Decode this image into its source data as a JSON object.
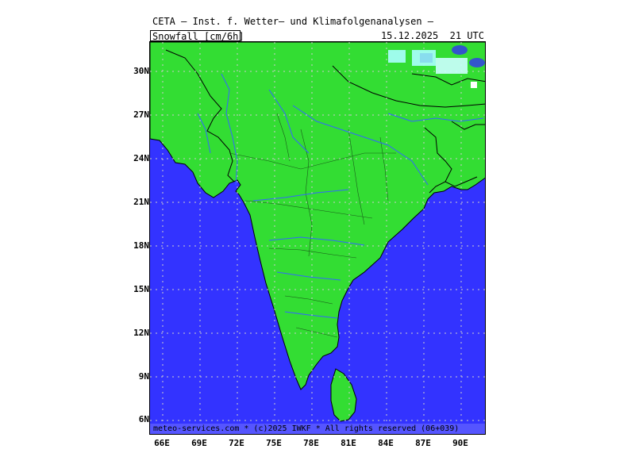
{
  "header": {
    "title": "CETA — Inst. f. Wetter— und Klimafolgenanalysen —",
    "variable": "Snowfall [cm/6h]",
    "valid_time": "15.12.2025  21 UTC"
  },
  "axes": {
    "lat_labels": [
      "30N",
      "27N",
      "24N",
      "21N",
      "18N",
      "15N",
      "12N",
      "9N",
      "6N"
    ],
    "lon_labels": [
      "66E",
      "69E",
      "72E",
      "75E",
      "78E",
      "81E",
      "84E",
      "87E",
      "90E"
    ]
  },
  "footer": {
    "credit": "meteo-services.com * (c)2025 IWKF * All rights reserved (06+039)"
  },
  "colors": {
    "ocean": "#3333ff",
    "land": "#33dd33",
    "rivers": "#3366ff",
    "grid": "#cccccc",
    "snow_light": "#aaffff",
    "snow_mid": "#88ddee",
    "snow_heavy": "#3355cc"
  }
}
